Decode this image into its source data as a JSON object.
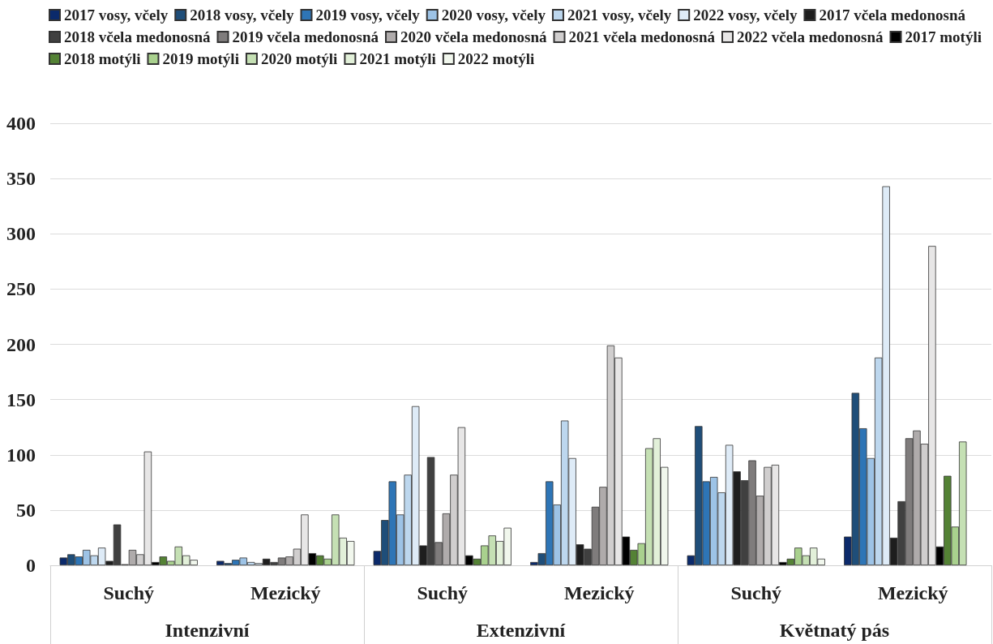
{
  "chart_data": {
    "type": "bar",
    "categories": [
      "Suchý",
      "Mezický",
      "Suchý",
      "Mezický",
      "Suchý",
      "Mezický"
    ],
    "annotations": [
      "Intenzivní",
      "Extenzivní",
      "Květnatý pás"
    ],
    "ylim": [
      0,
      400
    ],
    "yticks": [
      0,
      50,
      100,
      150,
      200,
      250,
      300,
      350,
      400
    ],
    "grid": "y",
    "legend": "top",
    "series": [
      {
        "name": "2017 vosy, včely",
        "color": "#0b2a6b",
        "values": [
          7,
          4,
          13,
          3,
          9,
          26
        ]
      },
      {
        "name": "2018 vosy, včely",
        "color": "#1f4e79",
        "values": [
          10,
          2,
          41,
          11,
          126,
          156
        ]
      },
      {
        "name": "2019 vosy, včely",
        "color": "#2e75b6",
        "values": [
          8,
          5,
          76,
          76,
          76,
          124
        ]
      },
      {
        "name": "2020 vosy, včely",
        "color": "#9dc3e6",
        "values": [
          14,
          7,
          46,
          55,
          80,
          97
        ]
      },
      {
        "name": "2021 vosy, včely",
        "color": "#bdd7ee",
        "values": [
          9,
          3,
          82,
          131,
          66,
          188
        ]
      },
      {
        "name": "2022 vosy, včely",
        "color": "#deebf7",
        "values": [
          16,
          2,
          144,
          97,
          109,
          343
        ]
      },
      {
        "name": "2017 včela medonosná",
        "color": "#1e1e1e",
        "values": [
          4,
          6,
          18,
          19,
          85,
          25
        ]
      },
      {
        "name": "2018 včela medonosná",
        "color": "#404040",
        "values": [
          37,
          3,
          98,
          15,
          77,
          58
        ]
      },
      {
        "name": "2019 včela medonosná",
        "color": "#7f7c7c",
        "values": [
          1,
          7,
          21,
          53,
          95,
          115
        ]
      },
      {
        "name": "2020 včela medonosná",
        "color": "#afabab",
        "values": [
          14,
          8,
          47,
          71,
          63,
          122
        ]
      },
      {
        "name": "2021 včela medonosná",
        "color": "#d0cece",
        "values": [
          10,
          15,
          82,
          199,
          89,
          110
        ]
      },
      {
        "name": "2022 včela medonosná",
        "color": "#e7e6e6",
        "values": [
          103,
          46,
          125,
          188,
          91,
          289
        ]
      },
      {
        "name": "2017 motýli",
        "color": "#000000",
        "values": [
          3,
          11,
          9,
          26,
          3,
          17
        ]
      },
      {
        "name": "2018 motýli",
        "color": "#548235",
        "values": [
          8,
          9,
          6,
          14,
          6,
          81
        ]
      },
      {
        "name": "2019 motýli",
        "color": "#a9d18e",
        "values": [
          4,
          6,
          18,
          20,
          16,
          35
        ]
      },
      {
        "name": "2020 motýli",
        "color": "#c5e0b4",
        "values": [
          17,
          46,
          27,
          106,
          9,
          112
        ]
      },
      {
        "name": "2021 motýli",
        "color": "#e2f0d9",
        "values": [
          9,
          25,
          22,
          115,
          16,
          null
        ]
      },
      {
        "name": "2022 motýli",
        "color": "#f1f7ed",
        "values": [
          5,
          22,
          34,
          89,
          6,
          null
        ]
      }
    ]
  }
}
